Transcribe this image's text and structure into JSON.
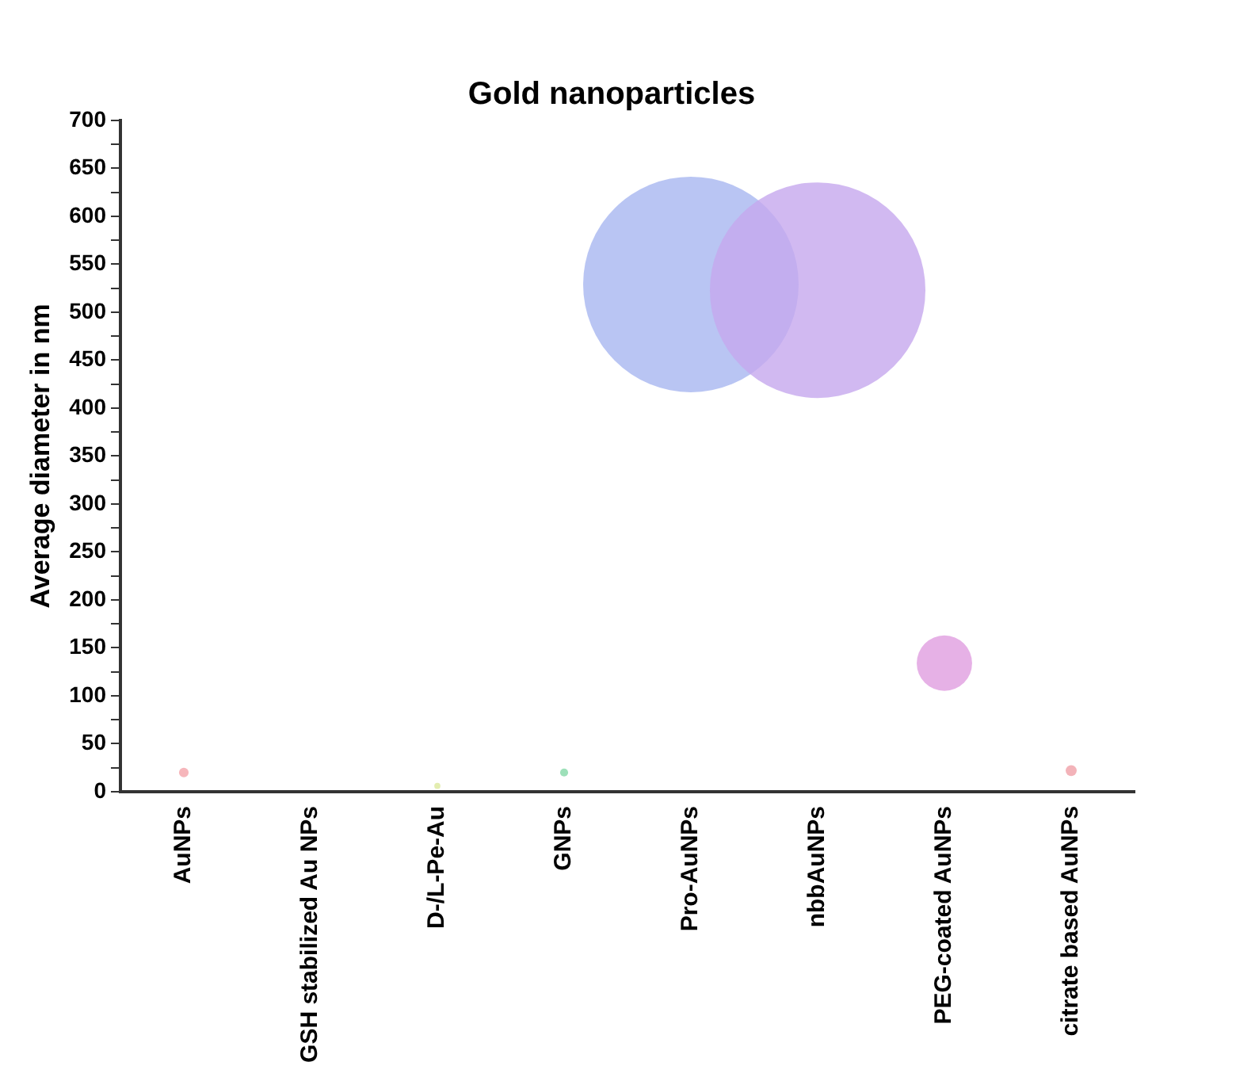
{
  "chart_data": {
    "type": "bubble",
    "title": "Gold nanoparticles",
    "ylabel": "Average diameter in nm",
    "categories": [
      "AuNPs",
      "GSH stabilized Au NPs",
      "D-/L-Pe-Au",
      "GNPs",
      "Pro-AuNPs",
      "nbbAuNPs",
      "PEG-coated AuNPs",
      "citrate based AuNPs"
    ],
    "values": [
      20,
      null,
      6,
      20,
      529,
      523,
      134,
      22
    ],
    "sizes": [
      0.002,
      null,
      0.0008,
      0.0014,
      1,
      1,
      0.066,
      0.0026
    ],
    "colors": [
      "#f4a4aa",
      null,
      "#dce89c",
      "#84d8a8",
      "#a8b6f0",
      "#c6a8ee",
      "#e09ee0",
      "#f0a0a8"
    ],
    "ylim": [
      0,
      700
    ],
    "yticks": [
      0,
      {
        "value": 25,
        "label": null
      },
      50,
      {
        "value": 75,
        "label": null
      },
      100,
      {
        "value": 125,
        "label": null
      },
      150,
      {
        "value": 175,
        "label": null
      },
      200,
      {
        "value": 225,
        "label": null
      },
      250,
      {
        "value": 275,
        "label": null
      },
      300,
      {
        "value": 325,
        "label": null
      },
      350,
      {
        "value": 375,
        "label": null
      },
      400,
      {
        "value": 425,
        "label": null
      },
      450,
      {
        "value": 475,
        "label": null
      },
      500,
      {
        "value": 525,
        "label": null
      },
      550,
      {
        "value": 575,
        "label": null
      },
      600,
      {
        "value": 625,
        "label": null
      },
      650,
      {
        "value": 675,
        "label": null
      },
      700
    ],
    "grid": false,
    "legend": false
  }
}
